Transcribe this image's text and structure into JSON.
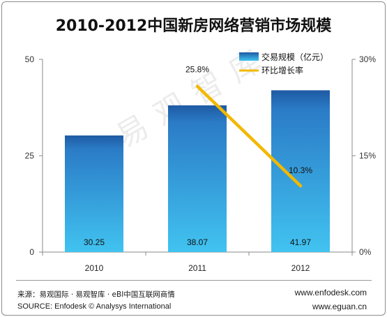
{
  "chart_data": {
    "type": "bar+line",
    "title": "2010-2012中国新房网络营销市场规模",
    "categories": [
      "2010",
      "2011",
      "2012"
    ],
    "series": [
      {
        "name": "交易规模（亿元）",
        "type": "bar",
        "axis": "left",
        "values": [
          30.25,
          38.07,
          41.97
        ],
        "value_labels": [
          "30.25",
          "38.07",
          "41.97"
        ]
      },
      {
        "name": "环比增长率",
        "type": "line",
        "axis": "right",
        "x": [
          "2011",
          "2012"
        ],
        "values": [
          25.8,
          10.3
        ],
        "value_labels": [
          "25.8%",
          "10.3%"
        ]
      }
    ],
    "y_left": {
      "range": [
        0,
        50
      ],
      "ticks": [
        0,
        25,
        50
      ],
      "tick_labels": [
        "0",
        "25",
        "50"
      ]
    },
    "y_right": {
      "range": [
        0,
        30
      ],
      "ticks": [
        0,
        15,
        30
      ],
      "tick_labels": [
        "0%",
        "15%",
        "30%"
      ]
    },
    "legend": "top-right",
    "grid": false,
    "colors": {
      "bar_top": "#1f5aa3",
      "bar_bottom": "#41c3f0",
      "line": "#f2b800"
    }
  },
  "watermark": "易观智库",
  "footer": {
    "source_cn": "来源：易观国际 · 易观智库 · eBI中国互联网商情",
    "source_en": "SOURCE: Enfodesk © Analysys International",
    "url1": "www.enfodesk.com",
    "url2": "www.eguan.cn"
  }
}
